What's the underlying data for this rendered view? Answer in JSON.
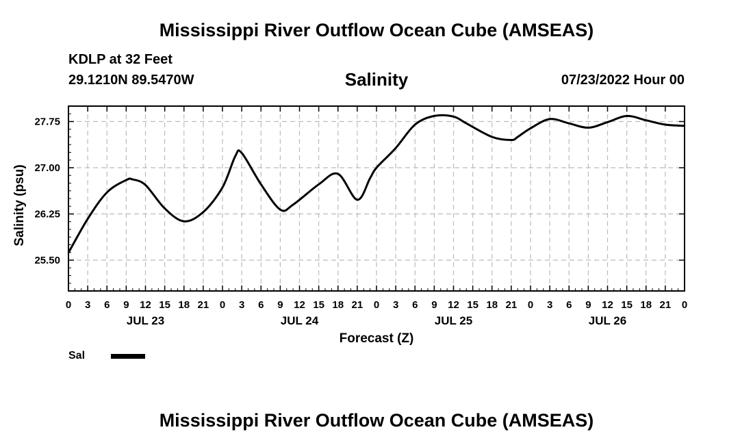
{
  "header": {
    "title": "Mississippi River Outflow Ocean Cube (AMSEAS)",
    "station_name": "KDLP at 32 Feet",
    "station_coords": "29.1210N  89.5470W",
    "variable": "Salinity",
    "valid_time": "07/23/2022 Hour 00"
  },
  "footer": {
    "title": "Mississippi River Outflow Ocean Cube (AMSEAS)"
  },
  "legend": {
    "label": "Sal"
  },
  "colors": {
    "line": "#000000",
    "grid": "#bbbbbb",
    "background": "#ffffff"
  },
  "chart_data": {
    "type": "line",
    "title": "Salinity",
    "xlabel": "Forecast (Z)",
    "ylabel": "Salinity (psu)",
    "xlim": [
      0,
      96
    ],
    "ylim": [
      25.0,
      28.0
    ],
    "grid": true,
    "yticks": [
      25.5,
      26.25,
      27.0,
      27.75
    ],
    "ytick_labels": [
      "25.50",
      "26.25",
      "27.00",
      "27.75"
    ],
    "xtick_hours": [
      0,
      3,
      6,
      9,
      12,
      15,
      18,
      21,
      24,
      27,
      30,
      33,
      36,
      39,
      42,
      45,
      48,
      51,
      54,
      57,
      60,
      63,
      66,
      69,
      72,
      75,
      78,
      81,
      84,
      87,
      90,
      93,
      96
    ],
    "xtick_labels": [
      "0",
      "3",
      "6",
      "9",
      "12",
      "15",
      "18",
      "21",
      "0",
      "3",
      "6",
      "9",
      "12",
      "15",
      "18",
      "21",
      "0",
      "3",
      "6",
      "9",
      "12",
      "15",
      "18",
      "21",
      "0",
      "3",
      "6",
      "9",
      "12",
      "15",
      "18",
      "21",
      "0"
    ],
    "day_labels": [
      {
        "hour": 12,
        "label": "JUL 23"
      },
      {
        "hour": 36,
        "label": "JUL 24"
      },
      {
        "hour": 60,
        "label": "JUL 25"
      },
      {
        "hour": 84,
        "label": "JUL 26"
      }
    ],
    "series": [
      {
        "name": "Sal",
        "x": [
          0,
          3,
          6,
          9,
          10,
          12,
          15,
          18,
          21,
          24,
          26,
          27,
          30,
          33,
          35,
          39,
          42,
          45,
          47,
          48,
          51,
          54,
          57,
          60,
          62,
          66,
          69,
          70,
          72,
          75,
          78,
          81,
          84,
          87,
          90,
          93,
          96
        ],
        "values": [
          25.62,
          26.17,
          26.6,
          26.8,
          26.81,
          26.72,
          26.34,
          26.13,
          26.28,
          26.68,
          27.19,
          27.24,
          26.73,
          26.32,
          26.4,
          26.73,
          26.9,
          26.48,
          26.83,
          27.0,
          27.32,
          27.7,
          27.84,
          27.83,
          27.72,
          27.5,
          27.45,
          27.5,
          27.64,
          27.79,
          27.72,
          27.65,
          27.74,
          27.84,
          27.77,
          27.7,
          27.68
        ]
      }
    ]
  }
}
